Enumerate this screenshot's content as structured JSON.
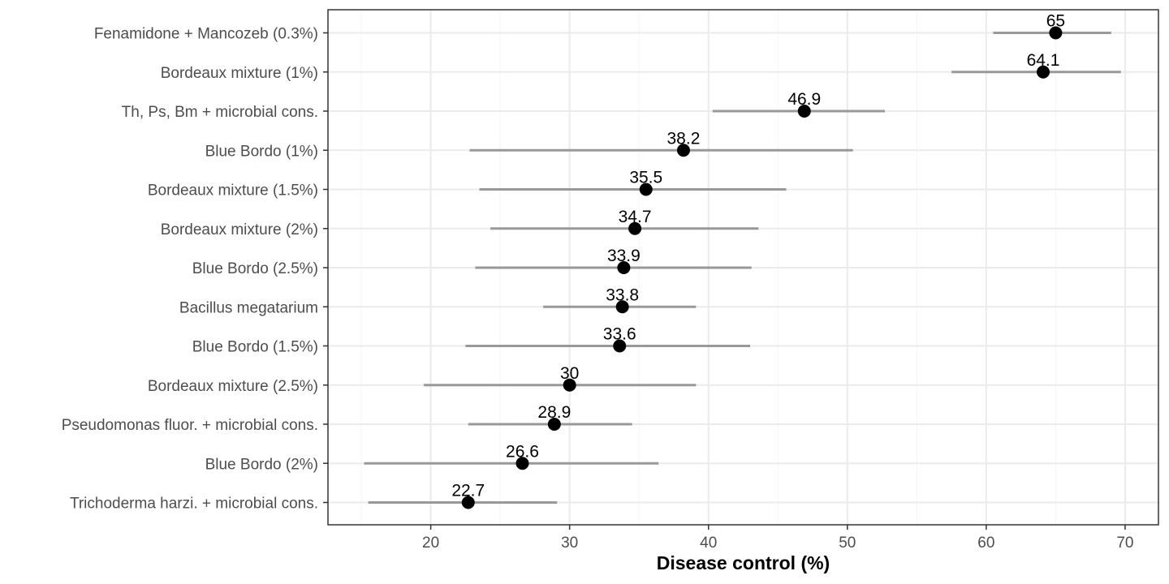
{
  "chart_data": {
    "type": "scatter",
    "title": "",
    "xlabel": "Disease control (%)",
    "ylabel": "",
    "xlim": [
      12.6,
      72.4
    ],
    "xticks": [
      20,
      30,
      40,
      50,
      60,
      70
    ],
    "grid": true,
    "categories": [
      "Fenamidone + Mancozeb (0.3%)",
      "Bordeaux mixture (1%)",
      "Th, Ps, Bm + microbial cons.",
      "Blue Bordo (1%)",
      "Bordeaux mixture (1.5%)",
      "Bordeaux mixture (2%)",
      "Blue Bordo (2.5%)",
      "Bacillus megatarium",
      "Blue Bordo (1.5%)",
      "Bordeaux mixture (2.5%)",
      "Pseudomonas fluor. + microbial cons.",
      "Blue Bordo (2%)",
      "Trichoderma harzi. + microbial cons."
    ],
    "values": [
      65,
      64.1,
      46.9,
      38.2,
      35.5,
      34.7,
      33.9,
      33.8,
      33.6,
      30,
      28.9,
      26.6,
      22.7
    ],
    "labels": [
      "65",
      "64.1",
      "46.9",
      "38.2",
      "35.5",
      "34.7",
      "33.9",
      "33.8",
      "33.6",
      "30",
      "28.9",
      "26.6",
      "22.7"
    ],
    "lower": [
      60.5,
      57.5,
      40.3,
      22.8,
      23.5,
      24.3,
      23.2,
      28.1,
      22.5,
      19.5,
      22.7,
      15.2,
      15.5
    ],
    "upper": [
      69.0,
      69.7,
      52.7,
      50.4,
      45.6,
      43.6,
      43.1,
      39.1,
      43.0,
      39.1,
      34.5,
      36.4,
      29.1
    ],
    "colors": {
      "point": "#000000",
      "errorbar": "#999999",
      "grid_major": "#ebebeb",
      "grid_minor": "#f5f5f5",
      "panel_border": "#333333",
      "text": "#4d4d4d"
    }
  }
}
